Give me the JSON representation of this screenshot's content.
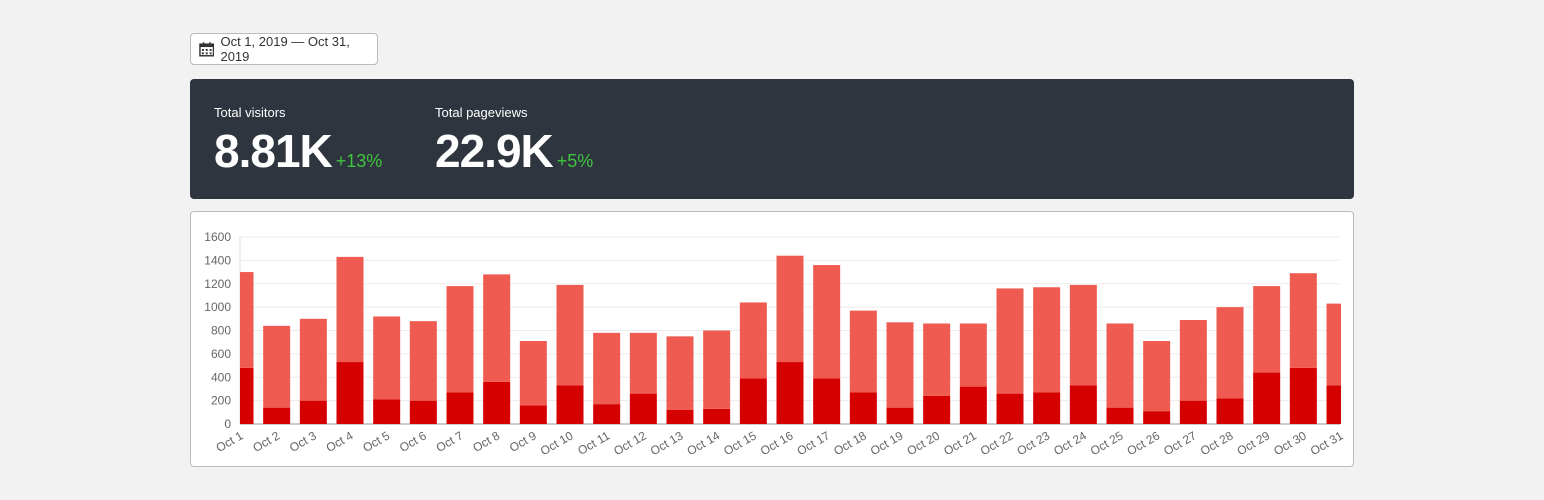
{
  "date_range": "Oct 1, 2019 — Oct 31, 2019",
  "stats": [
    {
      "label": "Total visitors",
      "value": "8.81K",
      "change": "+13%"
    },
    {
      "label": "Total pageviews",
      "value": "22.9K",
      "change": "+5%"
    }
  ],
  "chart_data": {
    "type": "bar",
    "stacked": true,
    "grid": true,
    "categories": [
      "Oct 1",
      "Oct 2",
      "Oct 3",
      "Oct 4",
      "Oct 5",
      "Oct 6",
      "Oct 7",
      "Oct 8",
      "Oct 9",
      "Oct 10",
      "Oct 11",
      "Oct 12",
      "Oct 13",
      "Oct 14",
      "Oct 15",
      "Oct 16",
      "Oct 17",
      "Oct 18",
      "Oct 19",
      "Oct 20",
      "Oct 21",
      "Oct 22",
      "Oct 23",
      "Oct 24",
      "Oct 25",
      "Oct 26",
      "Oct 27",
      "Oct 28",
      "Oct 29",
      "Oct 30",
      "Oct 31"
    ],
    "series": [
      {
        "color": "#d50000",
        "values": [
          480,
          140,
          200,
          530,
          210,
          200,
          270,
          360,
          160,
          330,
          170,
          260,
          120,
          130,
          390,
          530,
          390,
          270,
          140,
          240,
          320,
          260,
          270,
          330,
          140,
          110,
          200,
          220,
          440,
          480,
          330
        ]
      },
      {
        "color": "#ef5b50",
        "values": [
          820,
          700,
          700,
          900,
          710,
          680,
          910,
          920,
          550,
          860,
          610,
          520,
          630,
          670,
          650,
          910,
          970,
          700,
          730,
          620,
          540,
          900,
          900,
          860,
          720,
          600,
          690,
          780,
          740,
          810,
          700
        ]
      }
    ],
    "ylim": [
      0,
      1600
    ],
    "yticks": [
      0,
      200,
      400,
      600,
      800,
      1000,
      1200,
      1400,
      1600
    ]
  }
}
